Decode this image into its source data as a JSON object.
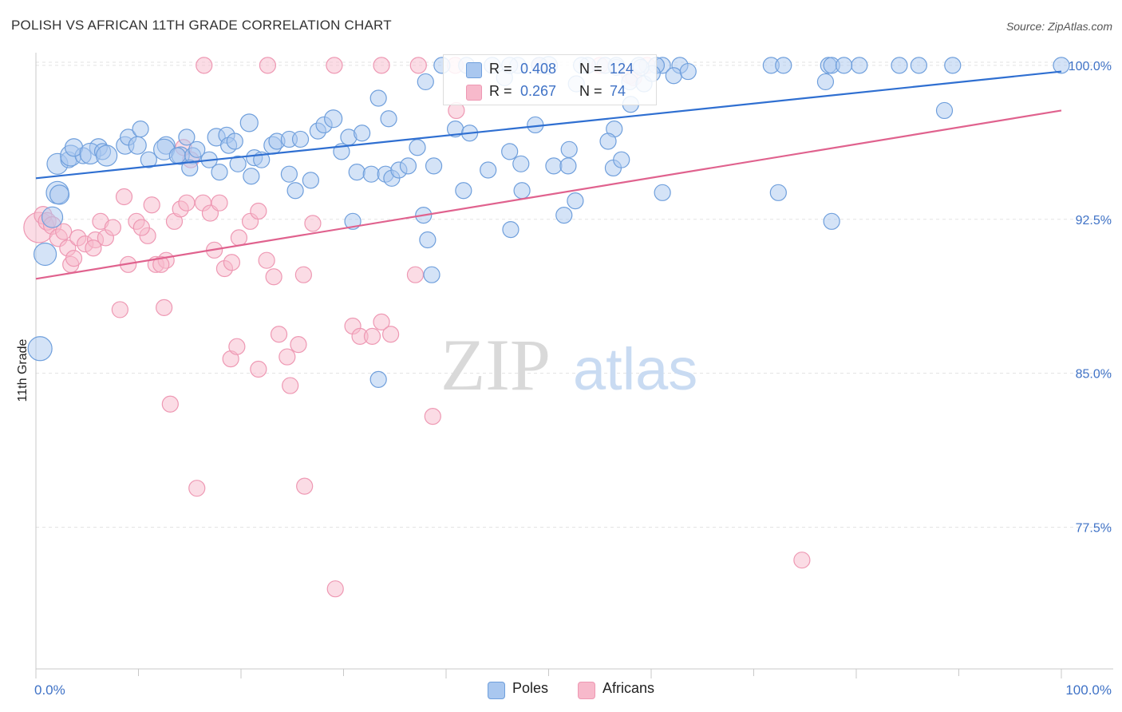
{
  "header": {
    "title": "POLISH VS AFRICAN 11TH GRADE CORRELATION CHART",
    "source": "Source: ZipAtlas.com"
  },
  "watermark": {
    "zip": "ZIP",
    "atlas": "atlas"
  },
  "legend": {
    "r_label": "R =",
    "n_label": "N =",
    "rows": [
      {
        "series": "Poles",
        "r": "0.408",
        "n": "124"
      },
      {
        "series": "Africans",
        "r": "0.267",
        "n": "74"
      }
    ]
  },
  "colors": {
    "poles_fill": "#a9c7ef",
    "poles_stroke": "#6f9fdc",
    "poles_line": "#2f6fd1",
    "africans_fill": "#f7b9cb",
    "africans_stroke": "#ee98b3",
    "africans_line": "#e0628e",
    "axis_text": "#3f72c6",
    "grid": "#e3e3e3"
  },
  "chart_data": {
    "type": "scatter",
    "title": "POLISH VS AFRICAN 11TH GRADE CORRELATION CHART",
    "xlabel": "",
    "ylabel": "11th Grade",
    "xlim": [
      0,
      100
    ],
    "ylim": [
      70.6,
      100.85
    ],
    "x_tick_labels": [
      {
        "value": 0,
        "label": "0.0%"
      },
      {
        "value": 100,
        "label": "100.0%"
      }
    ],
    "y_ticks": [
      {
        "value": 100,
        "label": "100.0%"
      },
      {
        "value": 92.5,
        "label": "92.5%"
      },
      {
        "value": 85,
        "label": "85.0%"
      },
      {
        "value": 77.5,
        "label": "77.5%"
      }
    ],
    "grid": "horizontal dashed",
    "series": [
      {
        "name": "Poles",
        "trend": {
          "x": [
            0,
            100
          ],
          "y": [
            94.5,
            99.7
          ]
        },
        "points": [
          [
            2.1,
            95.2,
            13
          ],
          [
            3.2,
            95.4,
            10
          ],
          [
            3.4,
            95.6,
            13
          ],
          [
            4.6,
            95.6,
            10
          ],
          [
            3.7,
            96.0,
            11
          ],
          [
            6.1,
            96.0,
            11
          ],
          [
            5.3,
            95.7,
            13
          ],
          [
            6.5,
            95.8,
            10
          ],
          [
            6.9,
            95.6,
            13
          ],
          [
            8.7,
            96.1,
            11
          ],
          [
            9.0,
            96.5,
            10
          ],
          [
            10.2,
            96.9,
            10
          ],
          [
            9.9,
            96.1,
            11
          ],
          [
            12.7,
            96.1,
            11
          ],
          [
            12.5,
            95.9,
            13
          ],
          [
            14.1,
            95.6,
            11
          ],
          [
            11.0,
            95.4,
            10
          ],
          [
            13.8,
            95.6,
            10
          ],
          [
            14.7,
            96.5,
            10
          ],
          [
            15.3,
            95.6,
            10
          ],
          [
            15.7,
            95.9,
            10
          ],
          [
            17.6,
            96.5,
            11
          ],
          [
            18.6,
            96.6,
            10
          ],
          [
            18.8,
            96.1,
            10
          ],
          [
            19.4,
            96.3,
            10
          ],
          [
            17.9,
            94.8,
            10
          ],
          [
            16.9,
            95.4,
            10
          ],
          [
            15.0,
            95.0,
            10
          ],
          [
            19.7,
            95.2,
            10
          ],
          [
            21.3,
            95.5,
            10
          ],
          [
            22.0,
            95.4,
            10
          ],
          [
            21.0,
            94.6,
            10
          ],
          [
            20.8,
            97.2,
            11
          ],
          [
            23.1,
            96.1,
            11
          ],
          [
            23.5,
            96.3,
            10
          ],
          [
            24.7,
            96.4,
            10
          ],
          [
            25.8,
            96.4,
            10
          ],
          [
            27.5,
            96.8,
            10
          ],
          [
            28.1,
            97.1,
            10
          ],
          [
            29.0,
            97.4,
            11
          ],
          [
            30.5,
            96.5,
            10
          ],
          [
            29.8,
            95.8,
            10
          ],
          [
            31.3,
            94.8,
            10
          ],
          [
            24.7,
            94.7,
            10
          ],
          [
            25.3,
            93.9,
            10
          ],
          [
            26.8,
            94.4,
            10
          ],
          [
            32.7,
            94.7,
            10
          ],
          [
            34.1,
            94.7,
            10
          ],
          [
            34.7,
            94.5,
            10
          ],
          [
            35.4,
            94.9,
            10
          ],
          [
            34.4,
            97.4,
            10
          ],
          [
            33.4,
            98.4,
            10
          ],
          [
            31.8,
            96.7,
            10
          ],
          [
            38.0,
            99.2,
            10
          ],
          [
            37.8,
            92.7,
            10
          ],
          [
            38.2,
            91.5,
            10
          ],
          [
            38.6,
            89.8,
            10
          ],
          [
            37.2,
            96.0,
            10
          ],
          [
            38.8,
            95.1,
            10
          ],
          [
            36.3,
            95.1,
            10
          ],
          [
            40.9,
            96.9,
            10
          ],
          [
            42.3,
            96.7,
            10
          ],
          [
            44.1,
            94.9,
            10
          ],
          [
            41.7,
            93.9,
            10
          ],
          [
            45.7,
            99.4,
            10
          ],
          [
            47.0,
            100.0,
            10
          ],
          [
            46.2,
            95.8,
            10
          ],
          [
            47.4,
            93.9,
            10
          ],
          [
            48.7,
            97.1,
            10
          ],
          [
            50.5,
            95.1,
            10
          ],
          [
            52.0,
            95.9,
            10
          ],
          [
            51.9,
            95.1,
            10
          ],
          [
            52.6,
            93.4,
            10
          ],
          [
            46.3,
            92.0,
            10
          ],
          [
            50.0,
            100.0,
            11
          ],
          [
            55.5,
            100.0,
            10
          ],
          [
            56.6,
            99.9,
            10
          ],
          [
            56.6,
            100.0,
            10
          ],
          [
            57.9,
            99.2,
            10
          ],
          [
            49.1,
            100.0,
            10
          ],
          [
            44.5,
            100.0,
            10
          ],
          [
            42.0,
            100.0,
            10
          ],
          [
            39.6,
            100.0,
            10
          ],
          [
            46.2,
            100.0,
            10
          ],
          [
            53.8,
            100.0,
            10
          ],
          [
            58.8,
            100.0,
            10
          ],
          [
            61.1,
            100.0,
            10
          ],
          [
            60.5,
            100.0,
            10
          ],
          [
            62.8,
            100.0,
            10
          ],
          [
            71.7,
            100.0,
            10
          ],
          [
            72.9,
            100.0,
            10
          ],
          [
            77.3,
            100.0,
            10
          ],
          [
            80.3,
            100.0,
            10
          ],
          [
            86.1,
            100.0,
            10
          ],
          [
            77.6,
            100.0,
            10
          ],
          [
            78.8,
            100.0,
            10
          ],
          [
            84.2,
            100.0,
            10
          ],
          [
            89.4,
            100.0,
            10
          ],
          [
            100.0,
            100.0,
            10
          ],
          [
            59.3,
            99.1,
            10
          ],
          [
            60.1,
            99.6,
            10
          ],
          [
            56.4,
            96.9,
            10
          ],
          [
            55.8,
            96.3,
            10
          ],
          [
            56.3,
            95.0,
            10
          ],
          [
            57.1,
            95.4,
            10
          ],
          [
            59.0,
            99.9,
            10
          ],
          [
            51.5,
            92.7,
            10
          ],
          [
            61.1,
            93.8,
            10
          ],
          [
            62.2,
            99.5,
            10
          ],
          [
            63.6,
            99.7,
            10
          ],
          [
            53.2,
            100.0,
            10
          ],
          [
            52.7,
            99.1,
            10
          ],
          [
            58.0,
            98.1,
            10
          ],
          [
            77.0,
            99.2,
            10
          ],
          [
            88.6,
            97.8,
            10
          ],
          [
            77.6,
            92.4,
            10
          ],
          [
            72.4,
            93.8,
            10
          ],
          [
            0.4,
            86.2,
            15
          ],
          [
            0.9,
            90.8,
            14
          ],
          [
            1.6,
            92.6,
            13
          ],
          [
            2.1,
            93.8,
            14
          ],
          [
            2.3,
            93.7,
            12
          ],
          [
            33.4,
            84.7,
            10
          ],
          [
            30.9,
            92.4,
            10
          ],
          [
            47.3,
            95.2,
            10
          ]
        ]
      },
      {
        "name": "Africans",
        "trend": {
          "x": [
            0,
            100
          ],
          "y": [
            89.6,
            97.8
          ]
        },
        "points": [
          [
            0.3,
            92.1,
            19
          ],
          [
            0.7,
            92.7,
            11
          ],
          [
            1.1,
            92.4,
            11
          ],
          [
            1.6,
            92.2,
            11
          ],
          [
            2.2,
            91.6,
            11
          ],
          [
            2.7,
            91.9,
            10
          ],
          [
            3.1,
            91.1,
            10
          ],
          [
            3.4,
            90.3,
            10
          ],
          [
            3.7,
            90.6,
            10
          ],
          [
            4.1,
            91.6,
            10
          ],
          [
            4.8,
            91.3,
            10
          ],
          [
            5.8,
            91.5,
            10
          ],
          [
            5.6,
            91.1,
            10
          ],
          [
            6.3,
            92.4,
            10
          ],
          [
            6.8,
            91.6,
            10
          ],
          [
            7.5,
            92.1,
            10
          ],
          [
            8.6,
            93.6,
            10
          ],
          [
            8.2,
            88.1,
            10
          ],
          [
            9.0,
            90.3,
            10
          ],
          [
            9.8,
            92.4,
            10
          ],
          [
            10.9,
            91.7,
            10
          ],
          [
            10.3,
            92.1,
            10
          ],
          [
            11.3,
            93.2,
            10
          ],
          [
            11.7,
            90.3,
            10
          ],
          [
            12.7,
            90.5,
            10
          ],
          [
            12.2,
            90.3,
            10
          ],
          [
            12.5,
            88.2,
            10
          ],
          [
            13.1,
            83.5,
            10
          ],
          [
            13.5,
            92.4,
            10
          ],
          [
            14.1,
            93.0,
            10
          ],
          [
            14.7,
            93.3,
            10
          ],
          [
            15.1,
            95.4,
            10
          ],
          [
            14.4,
            96.0,
            10
          ],
          [
            16.3,
            93.3,
            10
          ],
          [
            17.0,
            92.8,
            10
          ],
          [
            17.4,
            91.0,
            10
          ],
          [
            17.9,
            93.3,
            10
          ],
          [
            18.4,
            90.1,
            10
          ],
          [
            19.1,
            90.4,
            10
          ],
          [
            19.8,
            91.6,
            10
          ],
          [
            20.9,
            92.4,
            10
          ],
          [
            21.7,
            92.9,
            10
          ],
          [
            22.5,
            90.5,
            10
          ],
          [
            23.2,
            89.7,
            10
          ],
          [
            23.7,
            86.9,
            10
          ],
          [
            24.5,
            85.8,
            10
          ],
          [
            24.8,
            84.4,
            10
          ],
          [
            25.6,
            86.4,
            10
          ],
          [
            26.1,
            89.8,
            10
          ],
          [
            26.2,
            79.5,
            10
          ],
          [
            27.0,
            92.3,
            10
          ],
          [
            29.2,
            74.5,
            10
          ],
          [
            30.9,
            87.3,
            10
          ],
          [
            31.6,
            86.8,
            10
          ],
          [
            32.8,
            86.8,
            10
          ],
          [
            33.7,
            87.5,
            10
          ],
          [
            34.6,
            86.9,
            10
          ],
          [
            37.0,
            89.8,
            10
          ],
          [
            38.7,
            82.9,
            10
          ],
          [
            41.0,
            97.8,
            10
          ],
          [
            57.9,
            99.5,
            10
          ],
          [
            58.3,
            99.4,
            10
          ],
          [
            59.6,
            100.0,
            10
          ],
          [
            55.0,
            100.0,
            10
          ],
          [
            49.1,
            100.0,
            10
          ],
          [
            40.9,
            100.0,
            10
          ],
          [
            37.3,
            100.0,
            10
          ],
          [
            33.7,
            100.0,
            10
          ],
          [
            29.1,
            100.0,
            10
          ],
          [
            22.6,
            100.0,
            10
          ],
          [
            16.4,
            100.0,
            10
          ],
          [
            19.0,
            85.7,
            10
          ],
          [
            21.7,
            85.2,
            10
          ],
          [
            74.7,
            75.9,
            10
          ],
          [
            15.7,
            79.4,
            10
          ],
          [
            19.6,
            86.3,
            10
          ]
        ]
      }
    ]
  }
}
